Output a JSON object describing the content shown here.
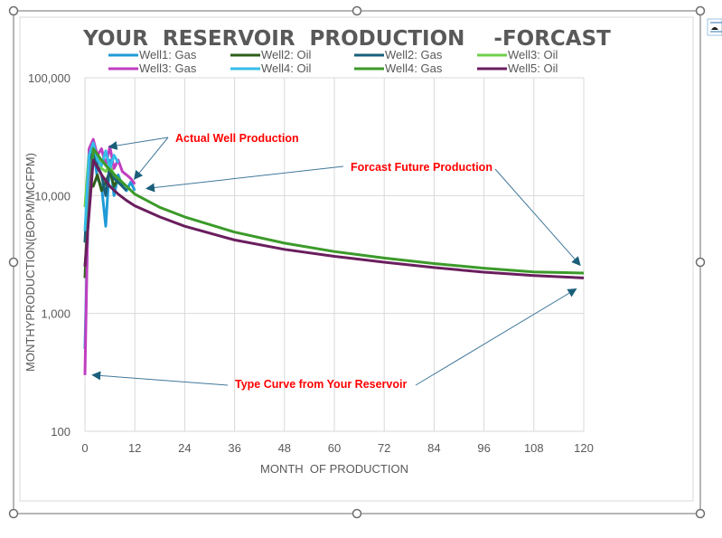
{
  "chart_data": {
    "type": "line",
    "title": "YOUR  RESERVOIR  PRODUCTION    -FORCAST",
    "xlabel": "MONTH  OF PRODUCTION",
    "ylabel": "MONTHYPRODUCTION(BOPM/MCFPM)",
    "x_scale": "linear",
    "y_scale": "log",
    "xlim": [
      0,
      120
    ],
    "ylim": [
      100,
      100000
    ],
    "x_ticks": [
      "0",
      "12",
      "24",
      "36",
      "48",
      "60",
      "72",
      "84",
      "96",
      "108",
      "120"
    ],
    "y_ticks": [
      "100",
      "1,000",
      "10,000",
      "100,000"
    ],
    "grid": true,
    "legend_position": "top",
    "series": [
      {
        "name": "Well1:  Gas",
        "color": "#1f9bd7",
        "x": [
          0,
          1,
          2,
          3,
          4,
          5,
          6,
          7,
          8,
          9,
          10,
          11,
          12
        ],
        "y": [
          500,
          16000,
          25000,
          14000,
          12000,
          5500,
          20000,
          10000,
          15000,
          12000,
          11000,
          13000,
          11000
        ]
      },
      {
        "name": "Well2:  Oil",
        "color": "#2e5e1a",
        "x": [
          0,
          1,
          2,
          3,
          4,
          5,
          6,
          7,
          8
        ],
        "y": [
          2000,
          13000,
          12000,
          15000,
          11000,
          13000,
          16000,
          12000,
          14000
        ]
      },
      {
        "name": "Well2:  Gas",
        "color": "#1a5f7a",
        "x": [
          0,
          1,
          2,
          3,
          4,
          5,
          6,
          7,
          8,
          9,
          10
        ],
        "y": [
          4000,
          20000,
          24000,
          18000,
          15000,
          10000,
          18000,
          14000,
          13000,
          12000,
          11000
        ]
      },
      {
        "name": "Well3:  Oil",
        "color": "#6fcf4a",
        "x": [
          0,
          1,
          2,
          3,
          4,
          5,
          6,
          7,
          8,
          9
        ],
        "y": [
          8000,
          24000,
          26000,
          22000,
          17000,
          16000,
          18000,
          15000,
          14000,
          13000
        ]
      },
      {
        "name": "Well3:  Gas",
        "color": "#c03ec0",
        "x": [
          0,
          1,
          2,
          3,
          4,
          5,
          6,
          7,
          8,
          9,
          10,
          11,
          12
        ],
        "y": [
          300,
          25000,
          30000,
          22000,
          25000,
          18000,
          26000,
          17000,
          20000,
          16000,
          15000,
          14000,
          12500
        ]
      },
      {
        "name": "Well4:  Oil",
        "color": "#34bdea",
        "x": [
          0,
          1,
          2,
          3,
          4,
          5,
          6,
          7,
          8
        ],
        "y": [
          5000,
          22000,
          28000,
          20000,
          18000,
          24000,
          17000,
          22000,
          19000
        ]
      },
      {
        "name": "Well4:  Gas",
        "color": "#3c9a2a",
        "x": [
          0,
          2,
          4,
          6,
          8,
          10,
          12,
          18,
          24,
          36,
          48,
          60,
          72,
          84,
          96,
          108,
          120
        ],
        "y": [
          2500,
          25000,
          20000,
          16500,
          14000,
          12000,
          10300,
          7950,
          6600,
          4900,
          3950,
          3350,
          2950,
          2650,
          2420,
          2250,
          2200
        ]
      },
      {
        "name": "Well5:  Oil",
        "color": "#6a1e5e",
        "x": [
          0,
          2,
          4,
          6,
          8,
          10,
          12,
          18,
          24,
          36,
          48,
          60,
          72,
          84,
          96,
          108,
          120
        ],
        "y": [
          2500,
          20000,
          15000,
          12000,
          10300,
          9100,
          8200,
          6600,
          5500,
          4200,
          3500,
          3050,
          2720,
          2450,
          2240,
          2100,
          2000
        ]
      }
    ],
    "annotations": [
      {
        "text": "Actual Well Production",
        "arrows_to": [
          [
            6,
            26000
          ],
          [
            12,
            14000
          ]
        ]
      },
      {
        "text": "Forcast Future Production",
        "arrows_to": [
          [
            15,
            11500
          ],
          [
            119,
            2600
          ]
        ]
      },
      {
        "text": "Type Curve from Your Reservoir",
        "arrows_to": [
          [
            2,
            300
          ],
          [
            118,
            1600
          ]
        ]
      }
    ]
  },
  "side_icon": "layout-options-icon"
}
